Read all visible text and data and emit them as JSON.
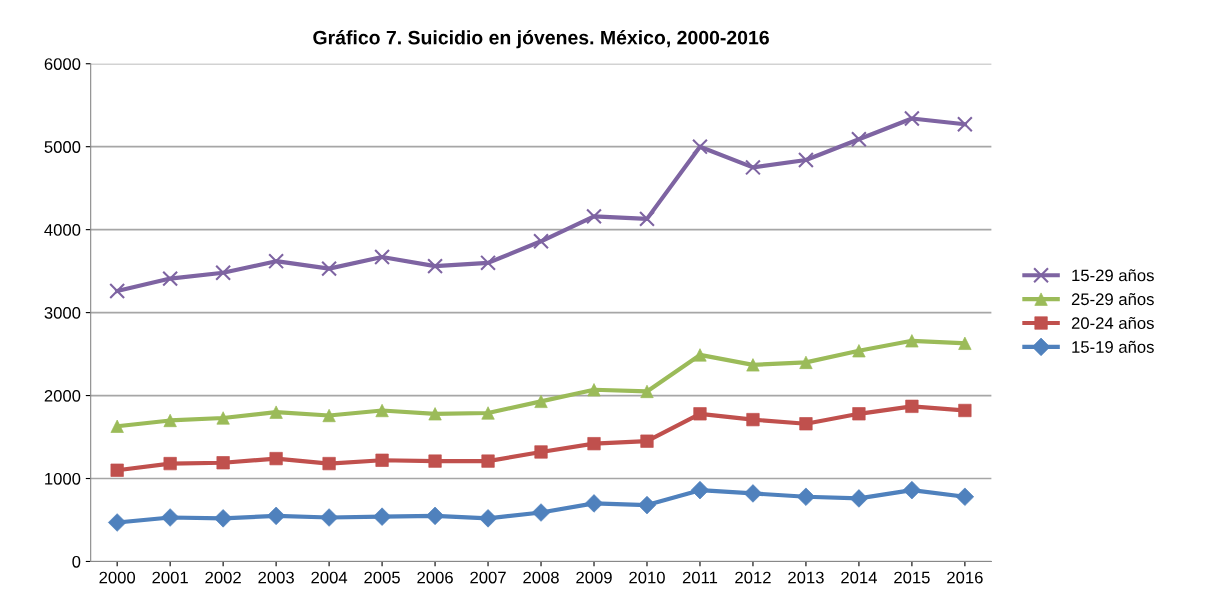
{
  "chart_data": {
    "type": "line",
    "title": "Gráfico 7. Suicidio en jóvenes. México, 2000-2016",
    "categories": [
      "2000",
      "2001",
      "2002",
      "2003",
      "2004",
      "2005",
      "2006",
      "2007",
      "2008",
      "2009",
      "2010",
      "2011",
      "2012",
      "2013",
      "2014",
      "2015",
      "2016"
    ],
    "series": [
      {
        "name": "15-29 años",
        "color": "#7e64a2",
        "marker": "cross",
        "values": [
          3260,
          3410,
          3480,
          3620,
          3530,
          3670,
          3560,
          3600,
          3860,
          4160,
          4130,
          5000,
          4750,
          4840,
          5090,
          5340,
          5270
        ]
      },
      {
        "name": "25-29 años",
        "color": "#9bbb59",
        "marker": "triangle",
        "values": [
          1630,
          1700,
          1730,
          1800,
          1760,
          1820,
          1780,
          1790,
          1930,
          2070,
          2050,
          2490,
          2370,
          2400,
          2540,
          2660,
          2630
        ]
      },
      {
        "name": "20-24 años",
        "color": "#c0504d",
        "marker": "square",
        "values": [
          1100,
          1180,
          1190,
          1240,
          1180,
          1220,
          1210,
          1210,
          1320,
          1420,
          1450,
          1780,
          1710,
          1660,
          1780,
          1870,
          1820
        ]
      },
      {
        "name": "15-19 años",
        "color": "#4f81bd",
        "marker": "diamond",
        "values": [
          470,
          530,
          520,
          550,
          530,
          540,
          550,
          520,
          590,
          700,
          680,
          860,
          820,
          780,
          760,
          860,
          780
        ]
      }
    ],
    "ylim": [
      0,
      6000
    ],
    "yticks": [
      0,
      1000,
      2000,
      3000,
      4000,
      5000,
      6000
    ],
    "grid": "y",
    "legend": "right",
    "line_style": "solid"
  }
}
